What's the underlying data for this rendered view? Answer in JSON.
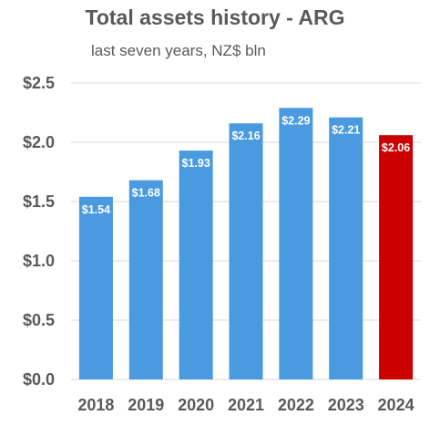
{
  "chart_data": {
    "type": "bar",
    "title": "Total assets history - ARG",
    "subtitle": "last seven years, NZ$ bln",
    "categories": [
      "2018",
      "2019",
      "2020",
      "2021",
      "2022",
      "2023",
      "2024"
    ],
    "values": [
      1.54,
      1.68,
      1.93,
      2.16,
      2.29,
      2.21,
      2.06
    ],
    "data_labels": [
      "$1.54",
      "$1.68",
      "$1.93",
      "$2.16",
      "$2.29",
      "$2.21",
      "$2.06"
    ],
    "y_ticks": [
      "$0.0",
      "$0.5",
      "$1.0",
      "$1.5",
      "$2.0",
      "$2.5"
    ],
    "y_tick_values": [
      0,
      0.5,
      1.0,
      1.5,
      2.0,
      2.5
    ],
    "ylim": [
      0,
      2.5
    ],
    "grid": true,
    "legend": "none",
    "colors": {
      "default_bar": "#4A9AE0",
      "highlight_bar": "#CC0000",
      "gridline": "#D9D9D9",
      "text": "#595959"
    },
    "highlight_index": 6
  }
}
